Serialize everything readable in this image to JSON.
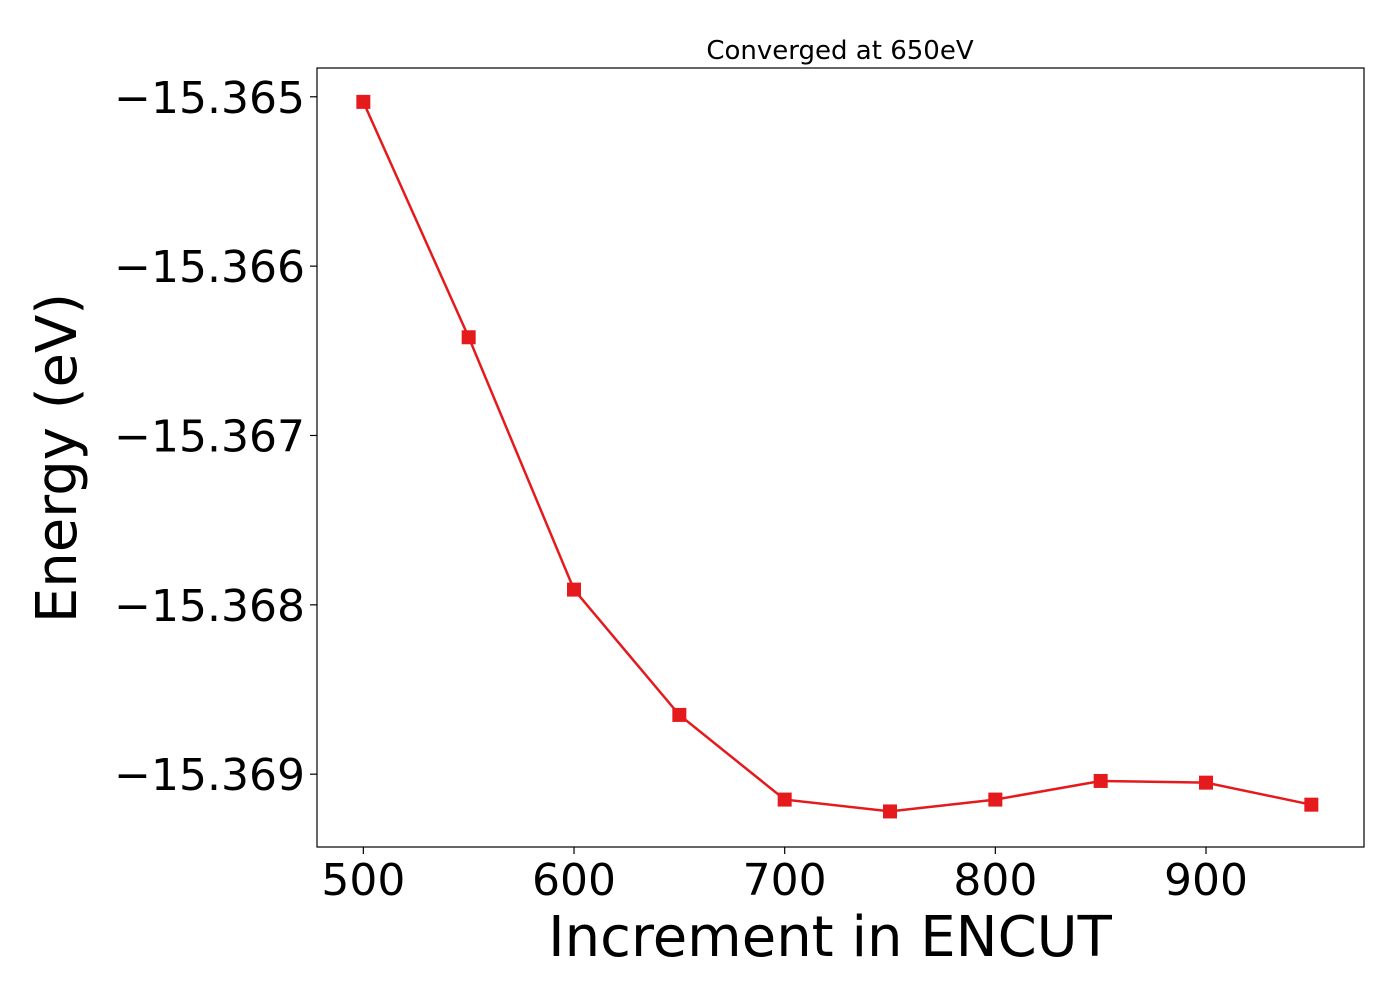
{
  "chart_data": {
    "type": "line",
    "title": "Converged at 650eV",
    "xlabel": "Increment in ENCUT",
    "ylabel": "Energy (eV)",
    "x": [
      500,
      550,
      600,
      650,
      700,
      750,
      800,
      850,
      900,
      950
    ],
    "series": [
      {
        "values": [
          -15.36503,
          -15.36642,
          -15.36791,
          -15.36865,
          -15.36915,
          -15.36922,
          -15.36915,
          -15.36904,
          -15.36905,
          -15.36918
        ],
        "color": "#e41a1c",
        "marker": "square"
      }
    ],
    "xticks": [
      500,
      600,
      700,
      800,
      900
    ],
    "xtick_labels": [
      "500",
      "600",
      "700",
      "800",
      "900"
    ],
    "yticks": [
      -15.365,
      -15.366,
      -15.367,
      -15.368,
      -15.369
    ],
    "ytick_labels": [
      "−15.365",
      "−15.366",
      "−15.367",
      "−15.368",
      "−15.369"
    ],
    "xlim": [
      478,
      975
    ],
    "ylim": [
      -15.36943,
      -15.36483
    ],
    "grid": false,
    "legend": "none"
  }
}
